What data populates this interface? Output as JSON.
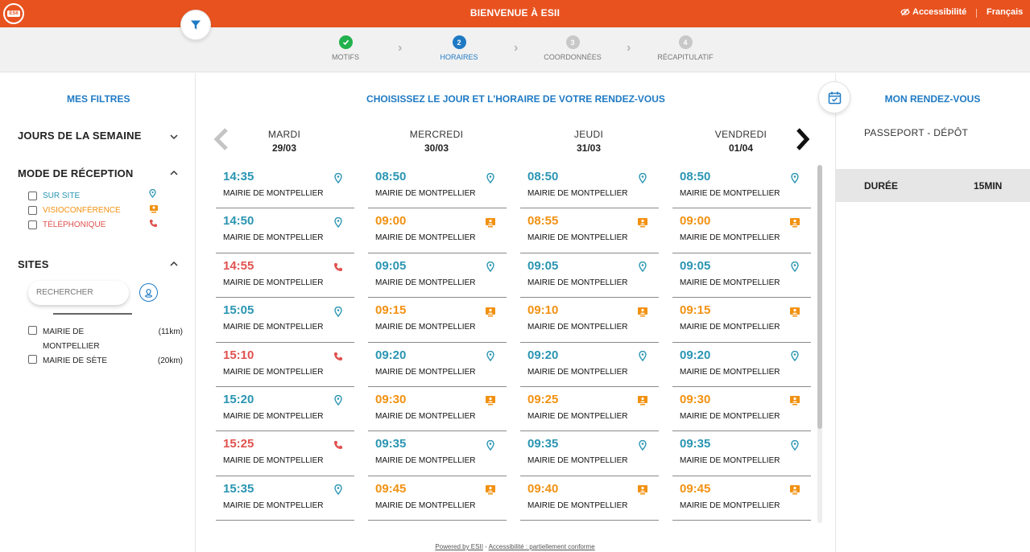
{
  "header": {
    "logo_text": "ESII",
    "title": "BIENVENUE À ESII",
    "accessibility": "Accessibilité",
    "language": "Français",
    "brand_color": "#e8521f"
  },
  "stepper": [
    {
      "number": "",
      "label": "MOTIFS",
      "state": "done"
    },
    {
      "number": "2",
      "label": "HORAIRES",
      "state": "active"
    },
    {
      "number": "3",
      "label": "COORDONNÉES",
      "state": "todo"
    },
    {
      "number": "4",
      "label": "RÉCAPITULATIF",
      "state": "todo"
    }
  ],
  "filters": {
    "title": "MES FILTRES",
    "days_section": "JOURS DE LA SEMAINE",
    "mode_section": "MODE DE RÉCEPTION",
    "modes": [
      {
        "label": "SUR SITE",
        "color": "#2a95b2",
        "icon": "location-pin-icon"
      },
      {
        "label": "VISIOCONFÉRENCE",
        "color": "#f29111",
        "icon": "video-conference-icon"
      },
      {
        "label": "TÉLÉPHONIQUE",
        "color": "#e0524f",
        "icon": "phone-icon"
      }
    ],
    "sites_section": "SITES",
    "search_placeholder": "RECHERCHER",
    "sites": [
      {
        "name": "MAIRIE DE MONTPELLIER",
        "distance": "(11km)"
      },
      {
        "name": "MAIRIE DE SÈTE",
        "distance": "(20km)"
      }
    ]
  },
  "calendar": {
    "title": "CHOISISSEZ LE JOUR ET L'HORAIRE DE VOTRE RENDEZ-VOUS",
    "days": [
      {
        "name": "MARDI",
        "date": "29/03",
        "slots": [
          {
            "time": "14:35",
            "place": "MAIRIE DE MONTPELLIER",
            "mode": "site"
          },
          {
            "time": "14:50",
            "place": "MAIRIE DE MONTPELLIER",
            "mode": "site"
          },
          {
            "time": "14:55",
            "place": "MAIRIE DE MONTPELLIER",
            "mode": "tel"
          },
          {
            "time": "15:05",
            "place": "MAIRIE DE MONTPELLIER",
            "mode": "site"
          },
          {
            "time": "15:10",
            "place": "MAIRIE DE MONTPELLIER",
            "mode": "tel"
          },
          {
            "time": "15:20",
            "place": "MAIRIE DE MONTPELLIER",
            "mode": "site"
          },
          {
            "time": "15:25",
            "place": "MAIRIE DE MONTPELLIER",
            "mode": "tel"
          },
          {
            "time": "15:35",
            "place": "MAIRIE DE MONTPELLIER",
            "mode": "site"
          }
        ]
      },
      {
        "name": "MERCREDI",
        "date": "30/03",
        "slots": [
          {
            "time": "08:50",
            "place": "MAIRIE DE MONTPELLIER",
            "mode": "site"
          },
          {
            "time": "09:00",
            "place": "MAIRIE DE MONTPELLIER",
            "mode": "visio"
          },
          {
            "time": "09:05",
            "place": "MAIRIE DE MONTPELLIER",
            "mode": "site"
          },
          {
            "time": "09:15",
            "place": "MAIRIE DE MONTPELLIER",
            "mode": "visio"
          },
          {
            "time": "09:20",
            "place": "MAIRIE DE MONTPELLIER",
            "mode": "site"
          },
          {
            "time": "09:30",
            "place": "MAIRIE DE MONTPELLIER",
            "mode": "visio"
          },
          {
            "time": "09:35",
            "place": "MAIRIE DE MONTPELLIER",
            "mode": "site"
          },
          {
            "time": "09:45",
            "place": "MAIRIE DE MONTPELLIER",
            "mode": "visio"
          }
        ]
      },
      {
        "name": "JEUDI",
        "date": "31/03",
        "slots": [
          {
            "time": "08:50",
            "place": "MAIRIE DE MONTPELLIER",
            "mode": "site"
          },
          {
            "time": "08:55",
            "place": "MAIRIE DE MONTPELLIER",
            "mode": "visio"
          },
          {
            "time": "09:05",
            "place": "MAIRIE DE MONTPELLIER",
            "mode": "site"
          },
          {
            "time": "09:10",
            "place": "MAIRIE DE MONTPELLIER",
            "mode": "visio"
          },
          {
            "time": "09:20",
            "place": "MAIRIE DE MONTPELLIER",
            "mode": "site"
          },
          {
            "time": "09:25",
            "place": "MAIRIE DE MONTPELLIER",
            "mode": "visio"
          },
          {
            "time": "09:35",
            "place": "MAIRIE DE MONTPELLIER",
            "mode": "site"
          },
          {
            "time": "09:40",
            "place": "MAIRIE DE MONTPELLIER",
            "mode": "visio"
          }
        ]
      },
      {
        "name": "VENDREDI",
        "date": "01/04",
        "slots": [
          {
            "time": "08:50",
            "place": "MAIRIE DE MONTPELLIER",
            "mode": "site"
          },
          {
            "time": "09:00",
            "place": "MAIRIE DE MONTPELLIER",
            "mode": "visio"
          },
          {
            "time": "09:05",
            "place": "MAIRIE DE MONTPELLIER",
            "mode": "site"
          },
          {
            "time": "09:15",
            "place": "MAIRIE DE MONTPELLIER",
            "mode": "visio"
          },
          {
            "time": "09:20",
            "place": "MAIRIE DE MONTPELLIER",
            "mode": "site"
          },
          {
            "time": "09:30",
            "place": "MAIRIE DE MONTPELLIER",
            "mode": "visio"
          },
          {
            "time": "09:35",
            "place": "MAIRIE DE MONTPELLIER",
            "mode": "site"
          },
          {
            "time": "09:45",
            "place": "MAIRIE DE MONTPELLIER",
            "mode": "visio"
          }
        ]
      }
    ]
  },
  "summary": {
    "title": "MON RENDEZ-VOUS",
    "motif": "PASSEPORT - DÉPÔT",
    "duration_label": "DURÉE",
    "duration_value": "15MIN"
  },
  "footer": {
    "powered": "Powered by ESII",
    "separator": " - ",
    "accessibility": "Accessibilité : partiellement conforme"
  }
}
